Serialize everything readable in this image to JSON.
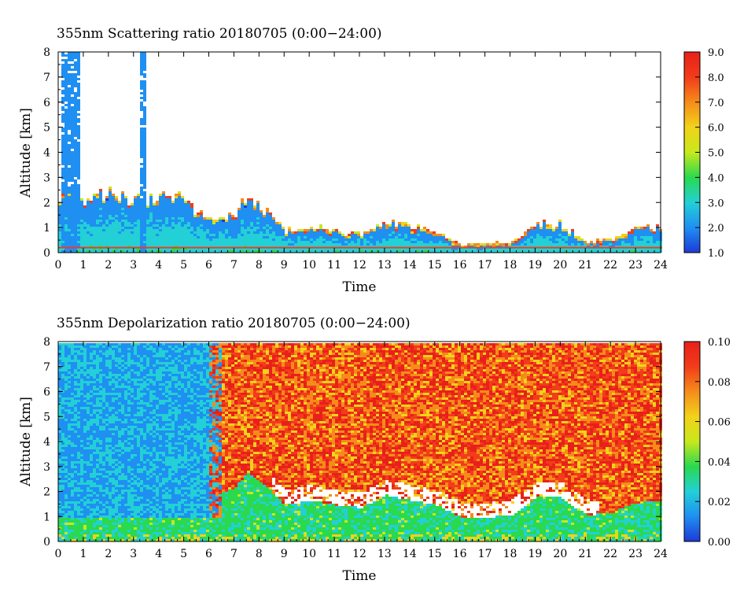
{
  "chart_data": [
    {
      "type": "heatmap",
      "title": "355nm Scattering ratio  20180705 (0:00−24:00)",
      "xlabel": "Time",
      "ylabel": "Altitude [km]",
      "xlim": [
        0,
        24
      ],
      "ylim": [
        0,
        8
      ],
      "x_ticks": [
        "0",
        "1",
        "2",
        "3",
        "4",
        "5",
        "6",
        "7",
        "8",
        "9",
        "10",
        "11",
        "12",
        "13",
        "14",
        "15",
        "16",
        "17",
        "18",
        "19",
        "20",
        "21",
        "22",
        "23",
        "24"
      ],
      "y_ticks": [
        "0",
        "1",
        "2",
        "3",
        "4",
        "5",
        "6",
        "7",
        "8"
      ],
      "colorbar": {
        "range": [
          1.0,
          9.0
        ],
        "ticks": [
          "1.0",
          "2.0",
          "3.0",
          "4.0",
          "5.0",
          "6.0",
          "7.0",
          "8.0",
          "9.0"
        ],
        "colors": [
          "#1e3ad6",
          "#1f8ff2",
          "#22d0d6",
          "#2ad94e",
          "#c8e81c",
          "#f2d21a",
          "#f58c1a",
          "#f23c1a",
          "#e8201a"
        ]
      },
      "features": {
        "cloud_columns": [
          {
            "x0": 0.1,
            "x1": 0.8,
            "top_km": 8.0,
            "value": 1.6
          },
          {
            "x0": 3.2,
            "x1": 3.5,
            "top_km": 8.0,
            "value": 1.6
          }
        ],
        "boundary_layer_tops_km": [
          [
            0,
            2.4
          ],
          [
            0.8,
            2.2
          ],
          [
            1.5,
            2.3
          ],
          [
            2.5,
            2.3
          ],
          [
            3.5,
            2.1
          ],
          [
            4.5,
            2.3
          ],
          [
            5.5,
            1.7
          ],
          [
            6.3,
            1.3
          ],
          [
            7.0,
            1.6
          ],
          [
            7.5,
            2.2
          ],
          [
            8.3,
            1.6
          ],
          [
            9.0,
            0.9
          ],
          [
            10.0,
            1.1
          ],
          [
            11.0,
            0.9
          ],
          [
            12.0,
            0.8
          ],
          [
            13.0,
            1.3
          ],
          [
            14.0,
            1.1
          ],
          [
            15.0,
            0.9
          ],
          [
            16.0,
            0.4
          ],
          [
            17.0,
            0.4
          ],
          [
            18.0,
            0.5
          ],
          [
            19.0,
            1.2
          ],
          [
            20.0,
            1.2
          ],
          [
            21.0,
            0.5
          ],
          [
            22.0,
            0.6
          ],
          [
            23.0,
            1.0
          ],
          [
            24.0,
            1.1
          ]
        ],
        "surface_layer_km": 0.2
      }
    },
    {
      "type": "heatmap",
      "title": "355nm Depolarization ratio  20180705 (0:00−24:00)",
      "xlabel": "Time",
      "ylabel": "Altitude [km]",
      "xlim": [
        0,
        24
      ],
      "ylim": [
        0,
        8
      ],
      "x_ticks": [
        "0",
        "1",
        "2",
        "3",
        "4",
        "5",
        "6",
        "7",
        "8",
        "9",
        "10",
        "11",
        "12",
        "13",
        "14",
        "15",
        "16",
        "17",
        "18",
        "19",
        "20",
        "21",
        "22",
        "23",
        "24"
      ],
      "y_ticks": [
        "0",
        "1",
        "2",
        "3",
        "4",
        "5",
        "6",
        "7",
        "8"
      ],
      "colorbar": {
        "range": [
          0.0,
          0.1
        ],
        "ticks": [
          "0.00",
          "0.02",
          "0.04",
          "0.06",
          "0.08",
          "0.10"
        ],
        "colors": [
          "#1e3ad6",
          "#1f8ff2",
          "#22d0d6",
          "#2ad94e",
          "#c8e81c",
          "#f2d21a",
          "#f58c1a",
          "#f23c1a",
          "#e8201a"
        ]
      },
      "features": {
        "low_depol_region": {
          "x0": 0,
          "x1": 6.5,
          "value": 0.012
        },
        "free_troposphere_value": 0.085,
        "boundary_layer_value": 0.035
      }
    }
  ]
}
